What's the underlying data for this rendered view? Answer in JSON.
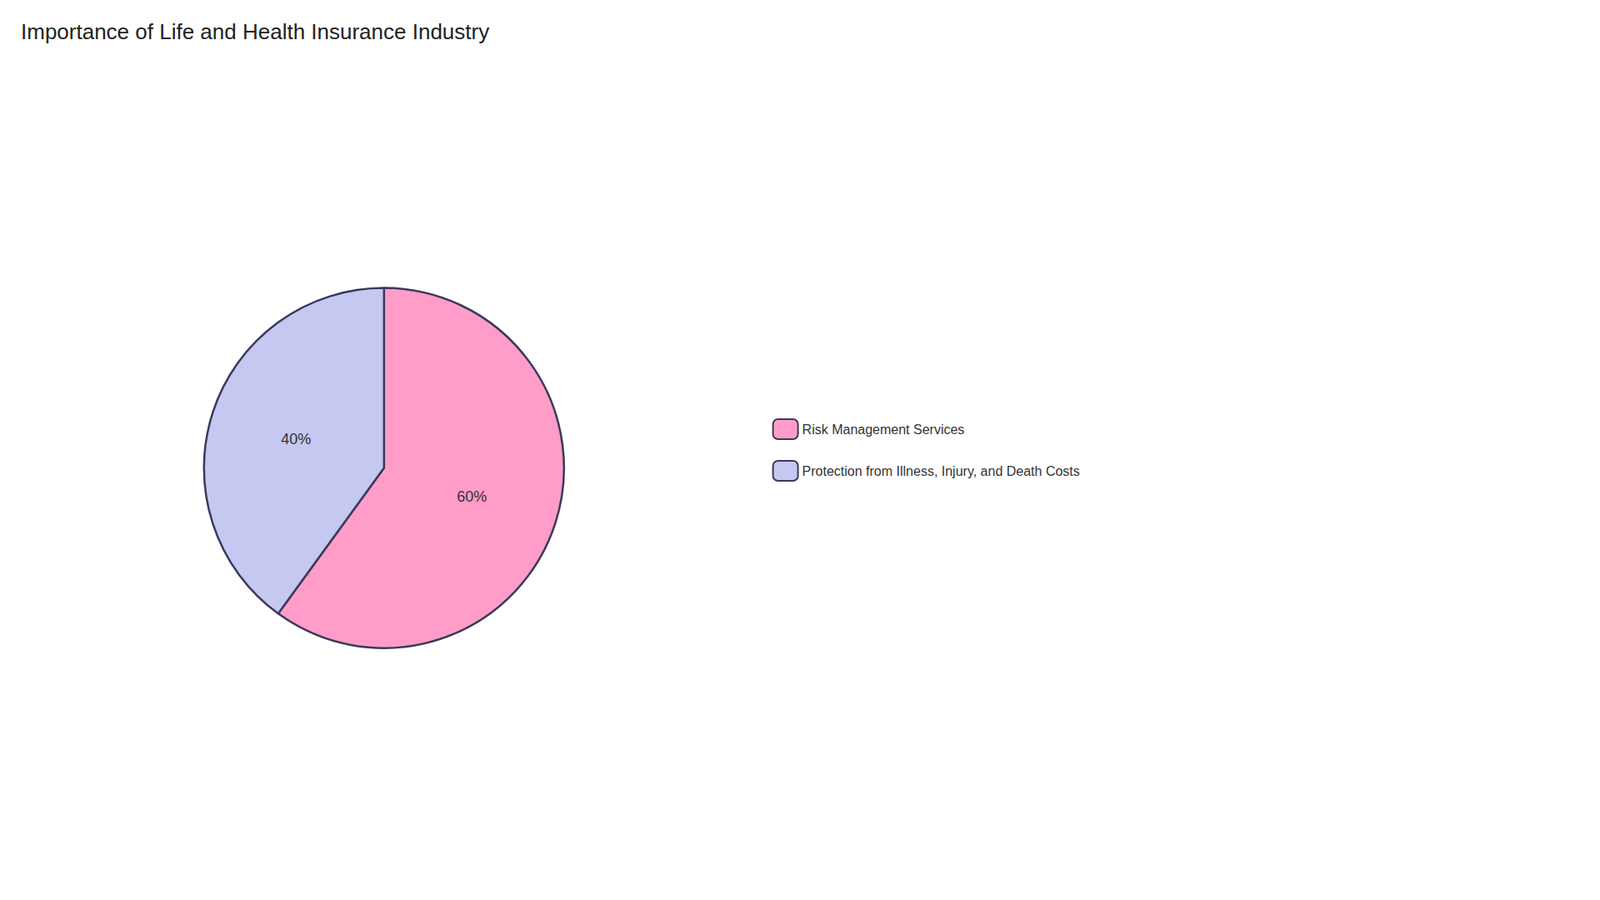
{
  "chart_data": {
    "type": "pie",
    "title": "Importance of Life and Health Insurance Industry",
    "categories": [
      "Risk Management Services",
      "Protection from Illness, Injury, and Death Costs"
    ],
    "values": [
      60,
      40
    ],
    "value_labels": [
      "60%",
      "40%"
    ],
    "colors": [
      "#FF9DC8",
      "#C5C8F0"
    ],
    "data_labels": true,
    "legend": "right"
  }
}
